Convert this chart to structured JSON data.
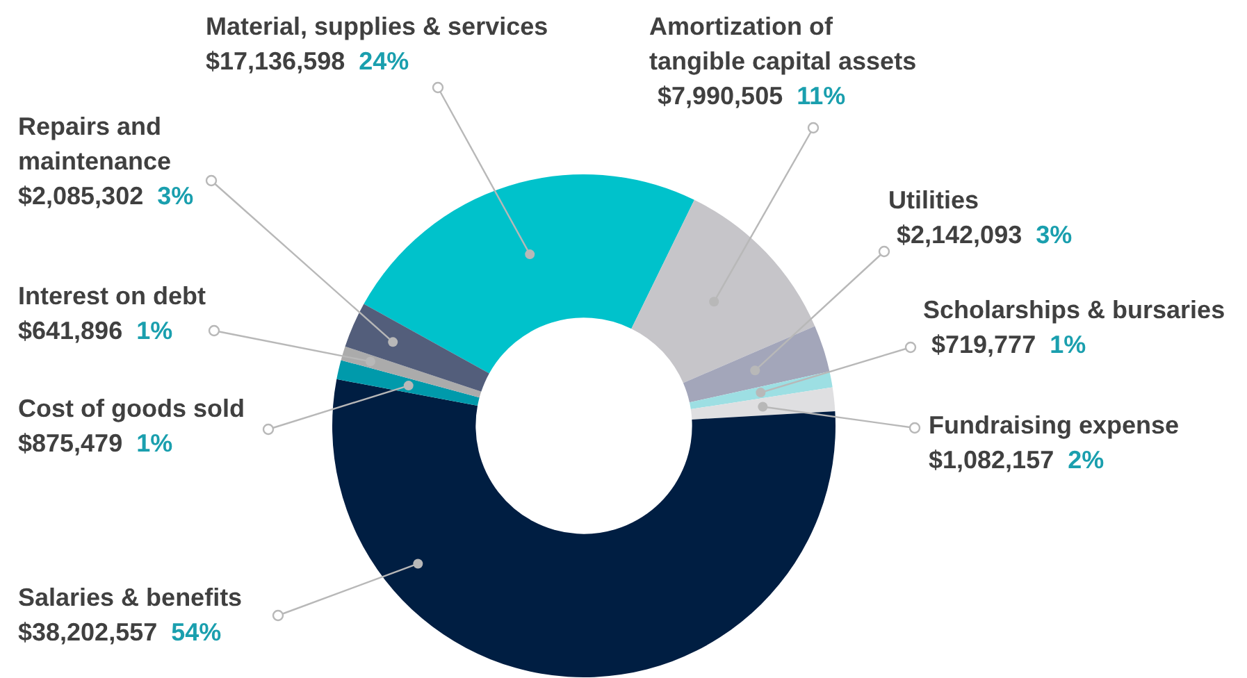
{
  "chart_data": {
    "type": "donut",
    "categories": [
      "Material, supplies & services",
      "Amortization of tangible capital assets",
      "Utilities",
      "Scholarships & bursaries",
      "Fundraising expense",
      "Salaries & benefits",
      "Cost of goods sold",
      "Interest on debt",
      "Repairs and maintenance"
    ],
    "values": [
      17136598,
      7990505,
      2142093,
      719777,
      1082157,
      38202557,
      875479,
      641896,
      2085302
    ],
    "colors": [
      "#00c2cb",
      "#c6c5c9",
      "#a3a6ba",
      "#9ddfe3",
      "#dfdfe1",
      "#001e42",
      "#009aab",
      "#ababab",
      "#535e7b"
    ],
    "value_labels": [
      "$17,136,598 24%",
      "$7,990,505 11%",
      "$2,142,093 3%",
      "$719,777 1%",
      "$1,082,157 2%",
      "$38,202,557 54%",
      "$875,479 1%",
      "$641,896 1%",
      "$2,085,302 3%"
    ]
  }
}
